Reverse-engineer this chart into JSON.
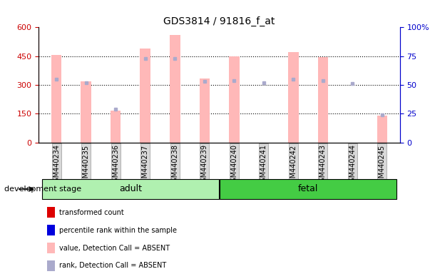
{
  "title": "GDS3814 / 91816_f_at",
  "samples": [
    "GSM440234",
    "GSM440235",
    "GSM440236",
    "GSM440237",
    "GSM440238",
    "GSM440239",
    "GSM440240",
    "GSM440241",
    "GSM440242",
    "GSM440243",
    "GSM440244",
    "GSM440245"
  ],
  "absent_values": [
    455,
    320,
    165,
    490,
    560,
    335,
    450,
    0,
    470,
    445,
    0,
    140
  ],
  "rank_absent": [
    55,
    52,
    29,
    73,
    73,
    53,
    54,
    52,
    55,
    54,
    51,
    24
  ],
  "groups": [
    {
      "label": "adult",
      "start": 0,
      "end": 5,
      "color": "#b0f0b0"
    },
    {
      "label": "fetal",
      "start": 6,
      "end": 11,
      "color": "#44cc44"
    }
  ],
  "ylim_left": [
    0,
    600
  ],
  "ylim_right": [
    0,
    100
  ],
  "yticks_left": [
    0,
    150,
    300,
    450,
    600
  ],
  "yticks_right": [
    0,
    25,
    50,
    75,
    100
  ],
  "bar_color": "#ffb8b8",
  "rank_dot_color": "#aaaacc",
  "left_axis_color": "#cc0000",
  "right_axis_color": "#0000cc",
  "title_fontsize": 10,
  "tick_fontsize": 7,
  "bar_width": 0.35,
  "development_stage_label": "development stage",
  "legend_entries": [
    {
      "color": "#dd0000",
      "label": "transformed count"
    },
    {
      "color": "#0000dd",
      "label": "percentile rank within the sample"
    },
    {
      "color": "#ffb8b8",
      "label": "value, Detection Call = ABSENT"
    },
    {
      "color": "#aaaacc",
      "label": "rank, Detection Call = ABSENT"
    }
  ]
}
